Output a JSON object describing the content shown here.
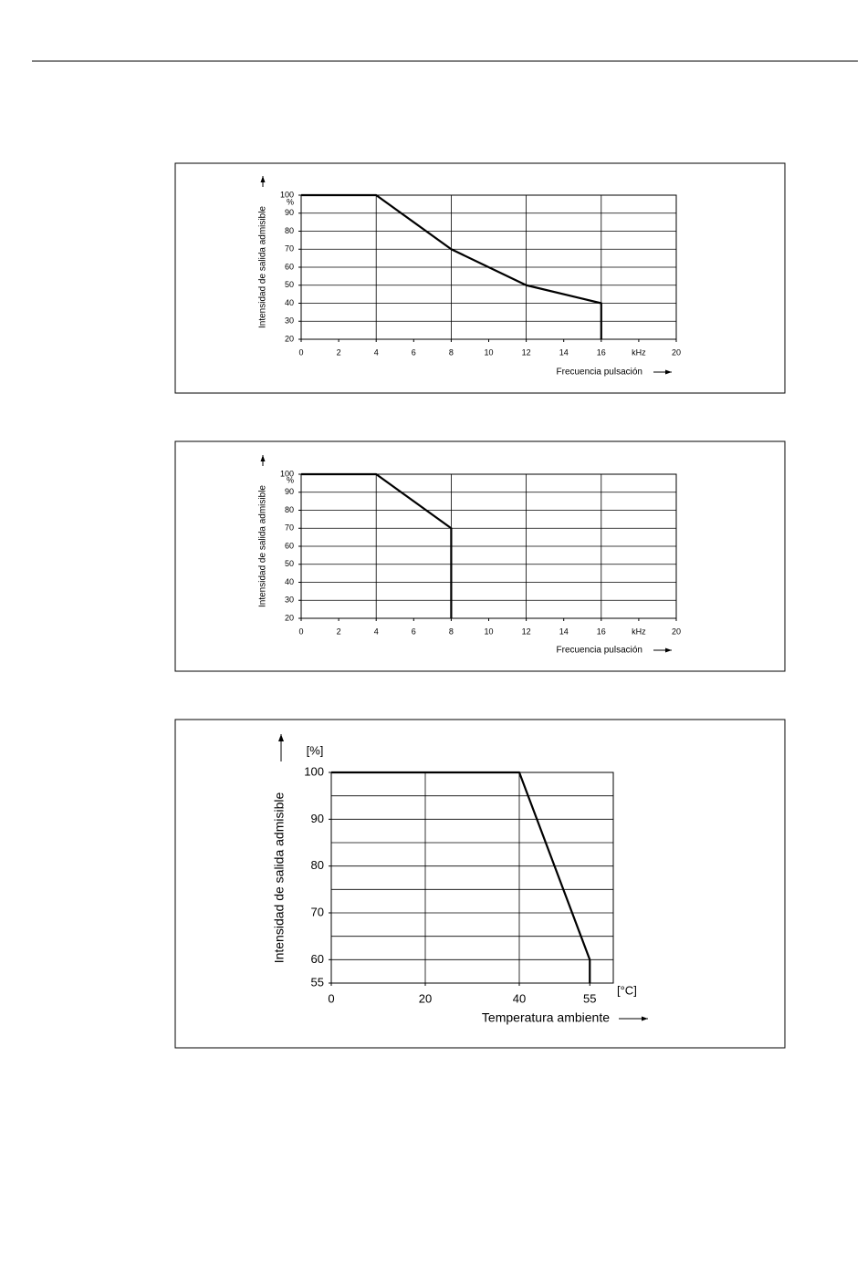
{
  "chart_data": [
    {
      "type": "line",
      "x_label": "Frecuencia pulsación",
      "y_label": "Intensidad de salida admisible",
      "y_unit": "%",
      "series": [
        {
          "name": "Intensidad",
          "color": "#000000",
          "x": [
            0,
            4,
            8,
            12,
            16,
            16
          ],
          "values": [
            100,
            100,
            70,
            50,
            40,
            20
          ]
        }
      ],
      "xlim": [
        0,
        20
      ],
      "ylim": [
        20,
        100
      ],
      "xticks": [
        0,
        2,
        4,
        6,
        8,
        10,
        12,
        14,
        16,
        {
          "value": 18,
          "label": "kHz"
        },
        20
      ],
      "yticks": [
        20,
        30,
        40,
        50,
        60,
        70,
        80,
        90,
        100
      ],
      "xgrid": [
        4,
        8,
        12,
        16
      ],
      "ygrid": [
        30,
        40,
        50,
        60,
        70,
        80,
        90
      ]
    },
    {
      "type": "line",
      "x_label": "Frecuencia pulsación",
      "y_label": "Intensidad de salida admisible",
      "y_unit": "%",
      "series": [
        {
          "name": "Intensidad",
          "color": "#000000",
          "x": [
            0,
            4,
            8,
            8
          ],
          "values": [
            100,
            100,
            70,
            20
          ]
        }
      ],
      "xlim": [
        0,
        20
      ],
      "ylim": [
        20,
        100
      ],
      "xticks": [
        0,
        2,
        4,
        6,
        8,
        10,
        12,
        14,
        16,
        {
          "value": 18,
          "label": "kHz"
        },
        20
      ],
      "yticks": [
        20,
        30,
        40,
        50,
        60,
        70,
        80,
        90,
        100
      ],
      "xgrid": [
        4,
        8,
        12,
        16
      ],
      "ygrid": [
        30,
        40,
        50,
        60,
        70,
        80,
        90
      ]
    },
    {
      "type": "line",
      "x_label": "Temperatura ambiente",
      "y_label": "Intensidad de salida admisible",
      "y_unit": "[%]",
      "x_unit": "[°C]",
      "series": [
        {
          "name": "Intensidad",
          "color": "#000000",
          "x": [
            0,
            40,
            55,
            55
          ],
          "values": [
            100,
            100,
            60,
            55
          ]
        }
      ],
      "xlim": [
        0,
        60
      ],
      "ylim": [
        55,
        100
      ],
      "xticks": [
        0,
        20,
        40,
        55
      ],
      "yticks": [
        55,
        60,
        70,
        80,
        90,
        100
      ],
      "xgrid": [
        20,
        40
      ],
      "ygrid": [
        60,
        65,
        70,
        75,
        80,
        85,
        90,
        95
      ]
    }
  ]
}
